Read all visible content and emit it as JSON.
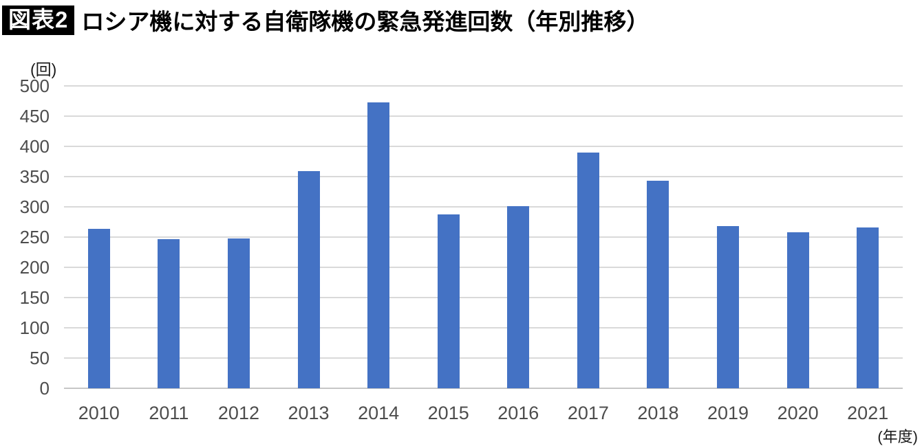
{
  "header": {
    "badge": "図表2",
    "title": "ロシア機に対する自衛隊機の緊急発進回数（年別推移）"
  },
  "chart_data": {
    "type": "bar",
    "title": "ロシア機に対する自衛隊機の緊急発進回数（年別推移）",
    "categories": [
      "2010",
      "2011",
      "2012",
      "2013",
      "2014",
      "2015",
      "2016",
      "2017",
      "2018",
      "2019",
      "2020",
      "2021"
    ],
    "values": [
      264,
      247,
      248,
      359,
      473,
      288,
      301,
      390,
      343,
      268,
      258,
      266
    ],
    "ylabel": "(回)",
    "xlabel": "(年度)",
    "ylim": [
      0,
      500
    ],
    "ytick_step": 50,
    "grid": true,
    "legend": false,
    "bar_color": "#4472C4",
    "gridline_color": "#D9D9D9",
    "axis_line_color": "#C6C6C6",
    "tick_label_color": "#4D4D4D"
  }
}
